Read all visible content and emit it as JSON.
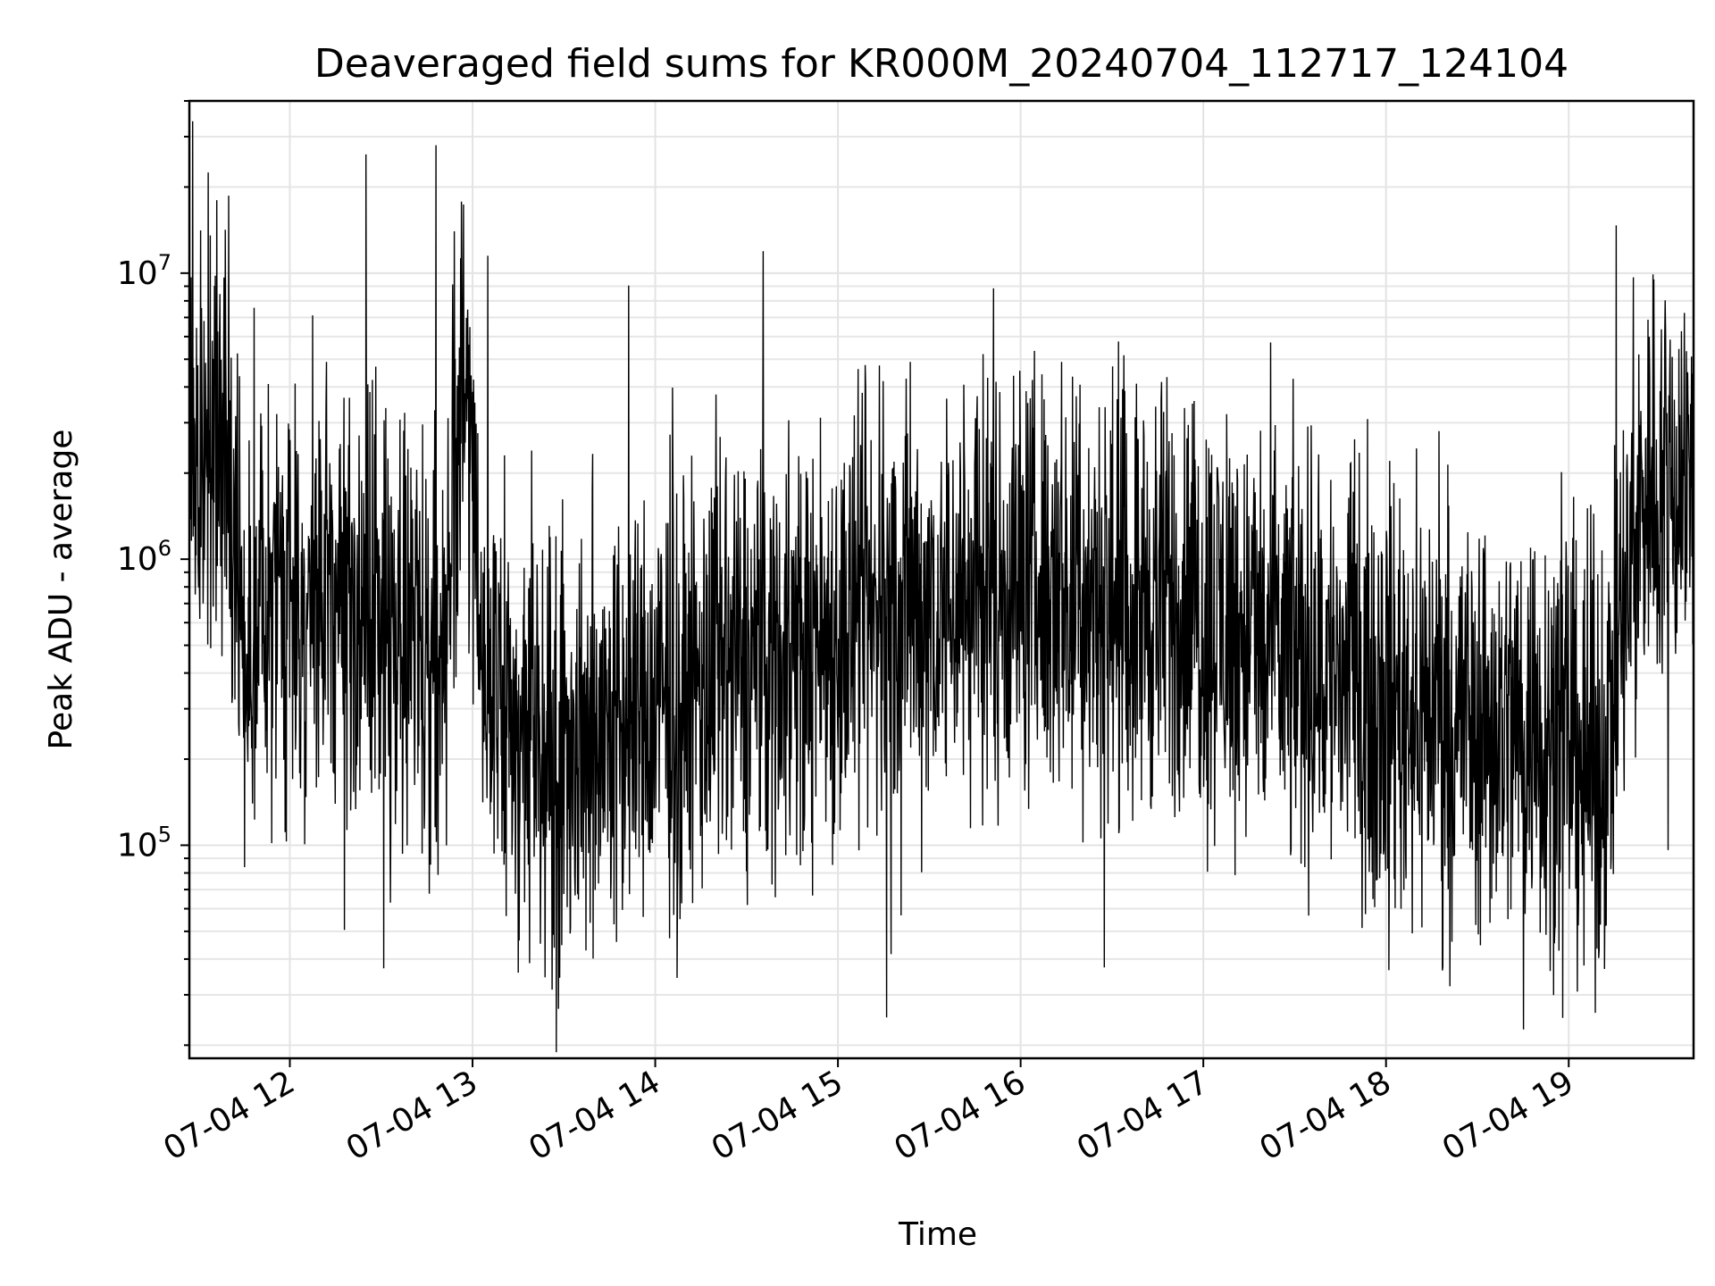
{
  "chart_data": {
    "type": "line",
    "title": "Deaveraged field sums for KR000M_20240704_112717_124104",
    "xlabel": "Time",
    "ylabel": "Peak ADU - average",
    "yscale": "log",
    "ylim": [
      18000,
      40000000
    ],
    "xlim": [
      "2024-07-04 11:27",
      "2024-07-04 19:41"
    ],
    "grid": true,
    "x_tick_labels": [
      "07-04 12",
      "07-04 13",
      "07-04 14",
      "07-04 15",
      "07-04 16",
      "07-04 17",
      "07-04 18",
      "07-04 19"
    ],
    "x_tick_times": [
      "2024-07-04 12:00",
      "2024-07-04 13:00",
      "2024-07-04 14:00",
      "2024-07-04 15:00",
      "2024-07-04 16:00",
      "2024-07-04 17:00",
      "2024-07-04 18:00",
      "2024-07-04 19:00"
    ],
    "y_ticks": [
      {
        "value": 100000,
        "base": "10",
        "exp": "5"
      },
      {
        "value": 1000000,
        "base": "10",
        "exp": "6"
      },
      {
        "value": 10000000,
        "base": "10",
        "exp": "7"
      }
    ],
    "series": [
      {
        "color": "#000000",
        "baseline_x": [
          "2024-07-04 11:27",
          "2024-07-04 11:40",
          "2024-07-04 11:44",
          "2024-07-04 12:00",
          "2024-07-04 12:30",
          "2024-07-04 12:50",
          "2024-07-04 12:57",
          "2024-07-04 13:05",
          "2024-07-04 13:30",
          "2024-07-04 14:00",
          "2024-07-04 14:30",
          "2024-07-04 15:00",
          "2024-07-04 15:30",
          "2024-07-04 16:00",
          "2024-07-04 16:30",
          "2024-07-04 17:00",
          "2024-07-04 17:30",
          "2024-07-04 18:00",
          "2024-07-04 18:30",
          "2024-07-04 19:00",
          "2024-07-04 19:10",
          "2024-07-04 19:25",
          "2024-07-04 19:41"
        ],
        "baseline_y": [
          2000000,
          2500000,
          500000,
          700000,
          650000,
          450000,
          5000000,
          300000,
          220000,
          300000,
          420000,
          550000,
          700000,
          850000,
          750000,
          650000,
          450000,
          350000,
          280000,
          250000,
          180000,
          1800000,
          2000000
        ],
        "spikes": [
          {
            "x": "2024-07-04 11:36",
            "y": 18000000
          },
          {
            "x": "2024-07-04 12:25",
            "y": 26000000
          },
          {
            "x": "2024-07-04 12:48",
            "y": 28000000
          },
          {
            "x": "2024-07-04 12:54",
            "y": 14000000
          },
          {
            "x": "2024-07-04 13:05",
            "y": 11500000
          },
          {
            "x": "2024-07-04 15:16",
            "y": 25000
          },
          {
            "x": "2024-07-04 19:05",
            "y": 38000
          },
          {
            "x": "2024-07-04 19:10",
            "y": 43000
          },
          {
            "x": "2024-07-04 19:39",
            "y": 4500000
          }
        ]
      }
    ]
  }
}
